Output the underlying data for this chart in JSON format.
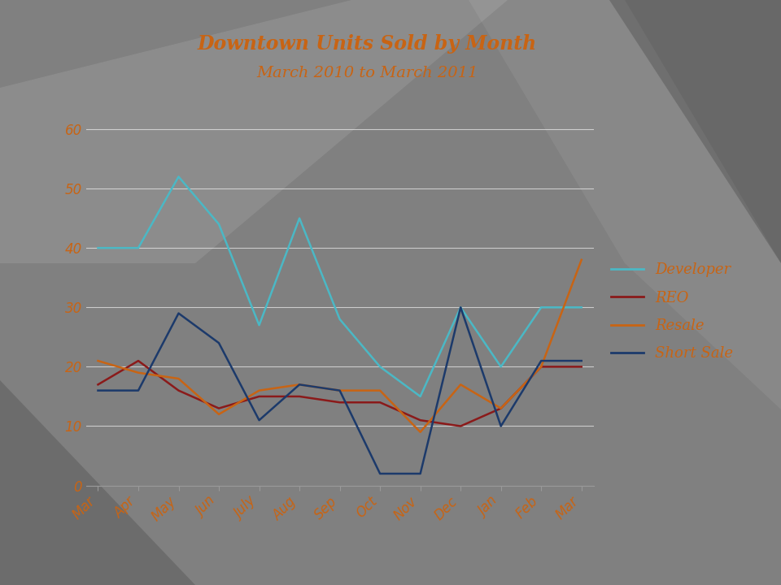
{
  "title": "Downtown Units Sold by Month",
  "subtitle": "March 2010 to March 2011",
  "months": [
    "Mar",
    "Apr",
    "May",
    "Jun",
    "July",
    "Aug",
    "Sep",
    "Oct",
    "Nov",
    "Dec",
    "Jan",
    "Feb",
    "Mar"
  ],
  "developer": [
    40,
    40,
    52,
    44,
    27,
    45,
    28,
    20,
    15,
    30,
    20,
    30,
    30
  ],
  "reo": [
    17,
    21,
    16,
    13,
    15,
    15,
    14,
    14,
    11,
    10,
    13,
    20,
    20
  ],
  "resale": [
    21,
    19,
    18,
    12,
    16,
    17,
    16,
    16,
    9,
    17,
    13,
    20,
    38
  ],
  "short_sale": [
    16,
    16,
    29,
    24,
    11,
    17,
    16,
    2,
    2,
    30,
    10,
    21,
    21
  ],
  "developer_color": "#4BB8C5",
  "reo_color": "#8B1A1A",
  "resale_color": "#C86414",
  "short_sale_color": "#1C3A6B",
  "title_color": "#C86414",
  "subtitle_color": "#C86414",
  "tick_color": "#C86414",
  "grid_color": "#FFFFFF",
  "background_color": "#808080",
  "ylim": [
    0,
    65
  ],
  "yticks": [
    0,
    10,
    20,
    30,
    40,
    50,
    60
  ],
  "title_fontsize": 17,
  "subtitle_fontsize": 14,
  "legend_fontsize": 13,
  "tick_fontsize": 12
}
